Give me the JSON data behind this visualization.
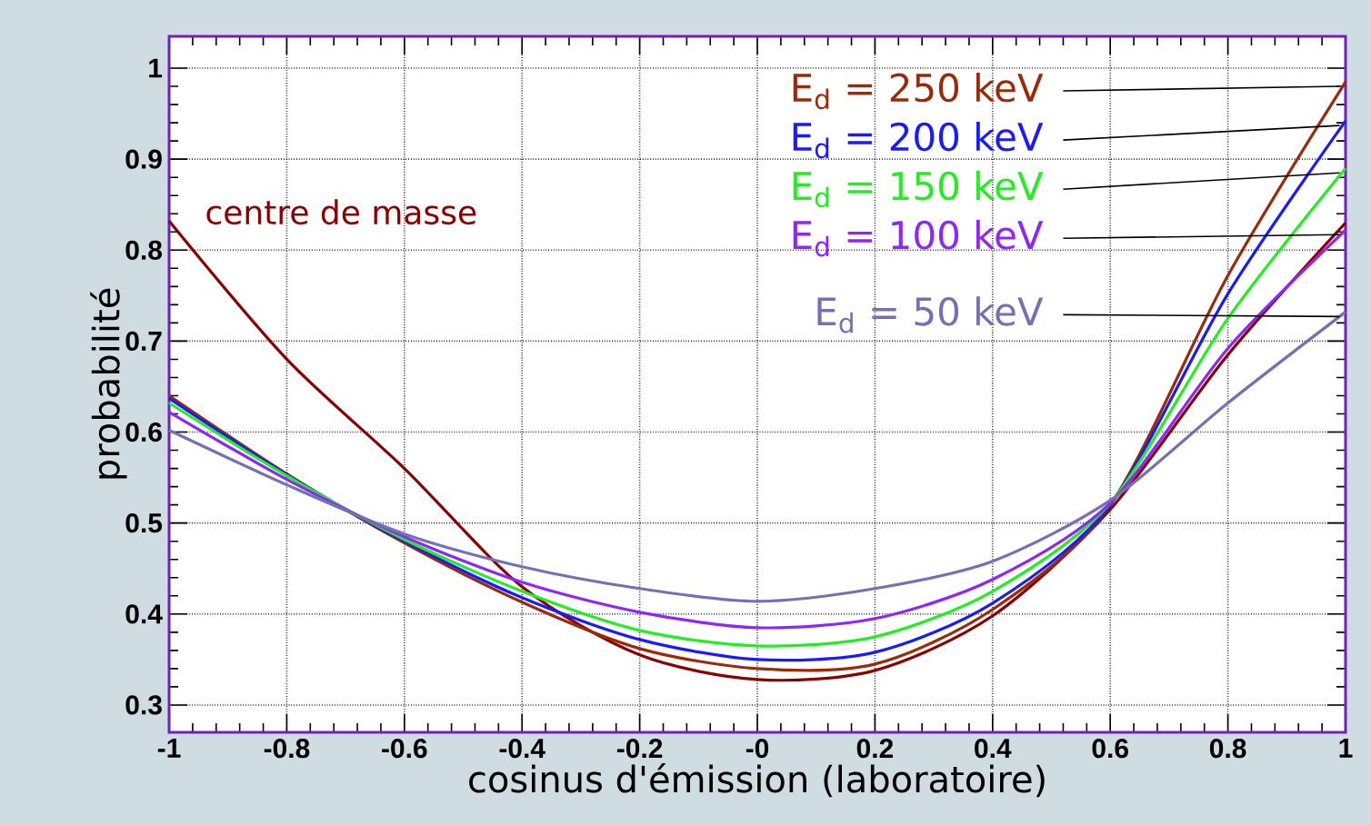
{
  "chart_data": {
    "type": "line",
    "xlabel": "cosinus d'émission (laboratoire)",
    "ylabel": "probabilité",
    "x": [
      -1,
      -0.8,
      -0.6,
      -0.4,
      -0.2,
      0,
      0.2,
      0.4,
      0.6,
      0.8,
      1
    ],
    "series": [
      {
        "name": "centre de masse",
        "color": "#8b0000",
        "values": [
          0.832,
          0.68,
          0.56,
          0.43,
          0.355,
          0.328,
          0.338,
          0.398,
          0.515,
          0.685,
          0.83
        ]
      },
      {
        "name": "E$_{d}$ = 250 keV",
        "color": "#9a2a08",
        "values": [
          0.64,
          0.554,
          0.478,
          0.413,
          0.362,
          0.34,
          0.345,
          0.405,
          0.52,
          0.772,
          0.985
        ]
      },
      {
        "name": "E$_{d}$ = 200 keV",
        "color": "#1a1aff",
        "values": [
          0.637,
          0.553,
          0.48,
          0.418,
          0.372,
          0.35,
          0.358,
          0.412,
          0.52,
          0.752,
          0.942
        ]
      },
      {
        "name": "E$_{d}$ = 150 keV",
        "color": "#22ee22",
        "values": [
          0.632,
          0.552,
          0.482,
          0.425,
          0.382,
          0.365,
          0.375,
          0.425,
          0.522,
          0.725,
          0.89
        ]
      },
      {
        "name": "E$_{d}$ = 100 keV",
        "color": "#9024ff",
        "values": [
          0.622,
          0.548,
          0.485,
          0.435,
          0.402,
          0.385,
          0.395,
          0.438,
          0.522,
          0.692,
          0.822
        ]
      },
      {
        "name": "E$_{d}$ = 50 keV",
        "color": "#7470b4",
        "values": [
          0.602,
          0.542,
          0.488,
          0.452,
          0.428,
          0.414,
          0.428,
          0.458,
          0.525,
          0.632,
          0.732
        ]
      }
    ],
    "xlim": [
      -1,
      1
    ],
    "ylim": [
      0.27,
      1.035
    ],
    "xticks": [
      -1,
      -0.8,
      -0.6,
      -0.4,
      -0.2,
      {
        "value": 0,
        "label": "-0"
      },
      0.2,
      0.4,
      0.6,
      0.8,
      1
    ],
    "yticks": [
      0.3,
      0.4,
      0.5,
      0.6,
      0.7,
      0.8,
      0.9,
      1
    ],
    "grid": true
  }
}
